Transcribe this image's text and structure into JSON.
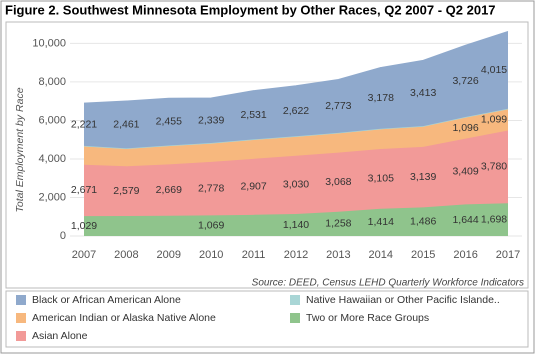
{
  "chart_data": {
    "type": "stacked_area",
    "title": "Figure 2. Southwest Minnesota Employment by Other Races, Q2 2007 - Q2 2017",
    "y_label": "Total Employment by Race",
    "source": "Source: DEED, Census LEHD Quarterly Workforce Indicators",
    "categories": [
      "2007",
      "2008",
      "2009",
      "2010",
      "2011",
      "2012",
      "2013",
      "2014",
      "2015",
      "2016",
      "2017"
    ],
    "ylim": [
      0,
      10800
    ],
    "yticks": [
      0,
      {
        "value": 2000,
        "label": "2,000"
      },
      {
        "value": 4000,
        "label": "4,000"
      },
      {
        "value": 6000,
        "label": "6,000"
      },
      {
        "value": 8000,
        "label": "8,000"
      },
      {
        "value": 10000,
        "label": "10,000"
      }
    ],
    "grid": true,
    "series": [
      {
        "name": "Two or More Race Groups",
        "color": "#8fc48c",
        "values": [
          1029,
          1040,
          1050,
          1069,
          1100,
          1140,
          1258,
          1414,
          1486,
          1644,
          1698
        ],
        "value_labels": [
          "1,029",
          null,
          null,
          "1,069",
          null,
          "1,140",
          "1,258",
          "1,414",
          "1,486",
          "1,644",
          "1,698"
        ]
      },
      {
        "name": "Asian Alone",
        "color": "#f29a98",
        "values": [
          2671,
          2579,
          2669,
          2778,
          2907,
          3030,
          3068,
          3105,
          3139,
          3409,
          3780
        ],
        "value_labels": [
          "2,671",
          "2,579",
          "2,669",
          "2,778",
          "2,907",
          "3,030",
          "3,068",
          "3,105",
          "3,139",
          "3,409",
          "3,780"
        ]
      },
      {
        "name": "American Indian or Alaska Native Alone",
        "color": "#f7b87e",
        "values": [
          950,
          900,
          950,
          950,
          980,
          980,
          1000,
          1020,
          1050,
          1096,
          1099
        ],
        "value_labels": [
          null,
          null,
          null,
          null,
          null,
          null,
          null,
          null,
          null,
          "1,096",
          "1,099"
        ]
      },
      {
        "name": "Native Hawaiian or Other Pacific Islande..",
        "color": "#a9d6d6",
        "values": [
          30,
          30,
          30,
          30,
          30,
          30,
          30,
          30,
          30,
          30,
          30
        ],
        "value_labels": [
          null,
          null,
          null,
          null,
          null,
          null,
          null,
          null,
          null,
          null,
          null
        ]
      },
      {
        "name": "Black or African American Alone",
        "color": "#8fa9cc",
        "values": [
          2221,
          2461,
          2455,
          2339,
          2531,
          2622,
          2773,
          3178,
          3413,
          3726,
          4015
        ],
        "value_labels": [
          "2,221",
          "2,461",
          "2,455",
          "2,339",
          "2,531",
          "2,622",
          "2,773",
          "3,178",
          "3,413",
          "3,726",
          "4,015"
        ]
      }
    ]
  }
}
